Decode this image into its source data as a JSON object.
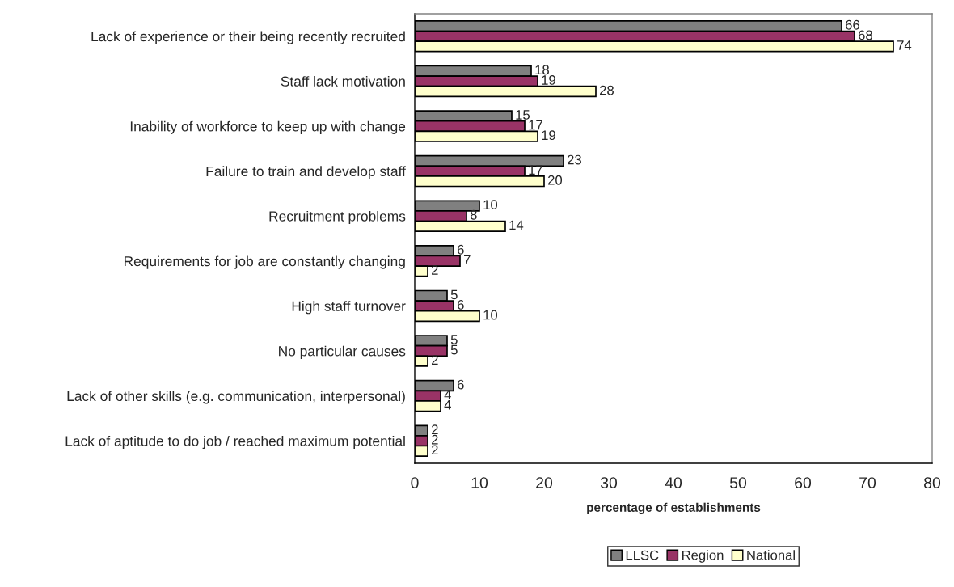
{
  "chart_data": {
    "type": "bar",
    "orientation": "horizontal",
    "xlabel": "percentage of establishments",
    "categories": [
      "Lack of experience or their being recently recruited",
      "Staff lack motivation",
      "Inability of workforce to keep up with change",
      "Failure to train and develop staff",
      "Recruitment problems",
      "Requirements for job are constantly changing",
      "High staff turnover",
      "No particular causes",
      "Lack of other skills (e.g. communication, interpersonal)",
      "Lack of aptitude to do job / reached maximum potential"
    ],
    "series": [
      {
        "name": "LLSC",
        "color": "#808080",
        "values": [
          66,
          18,
          15,
          23,
          10,
          6,
          5,
          5,
          6,
          2
        ]
      },
      {
        "name": "Region",
        "color": "#993366",
        "values": [
          68,
          19,
          17,
          17,
          8,
          7,
          6,
          5,
          4,
          2
        ]
      },
      {
        "name": "National",
        "color": "#ffffcc",
        "values": [
          74,
          28,
          19,
          20,
          14,
          2,
          10,
          2,
          4,
          2
        ]
      }
    ],
    "xlim": [
      0,
      80
    ],
    "xticks": [
      0,
      10,
      20,
      30,
      40,
      50,
      60,
      70,
      80
    ],
    "data_labels": true,
    "legend": "bottom"
  }
}
